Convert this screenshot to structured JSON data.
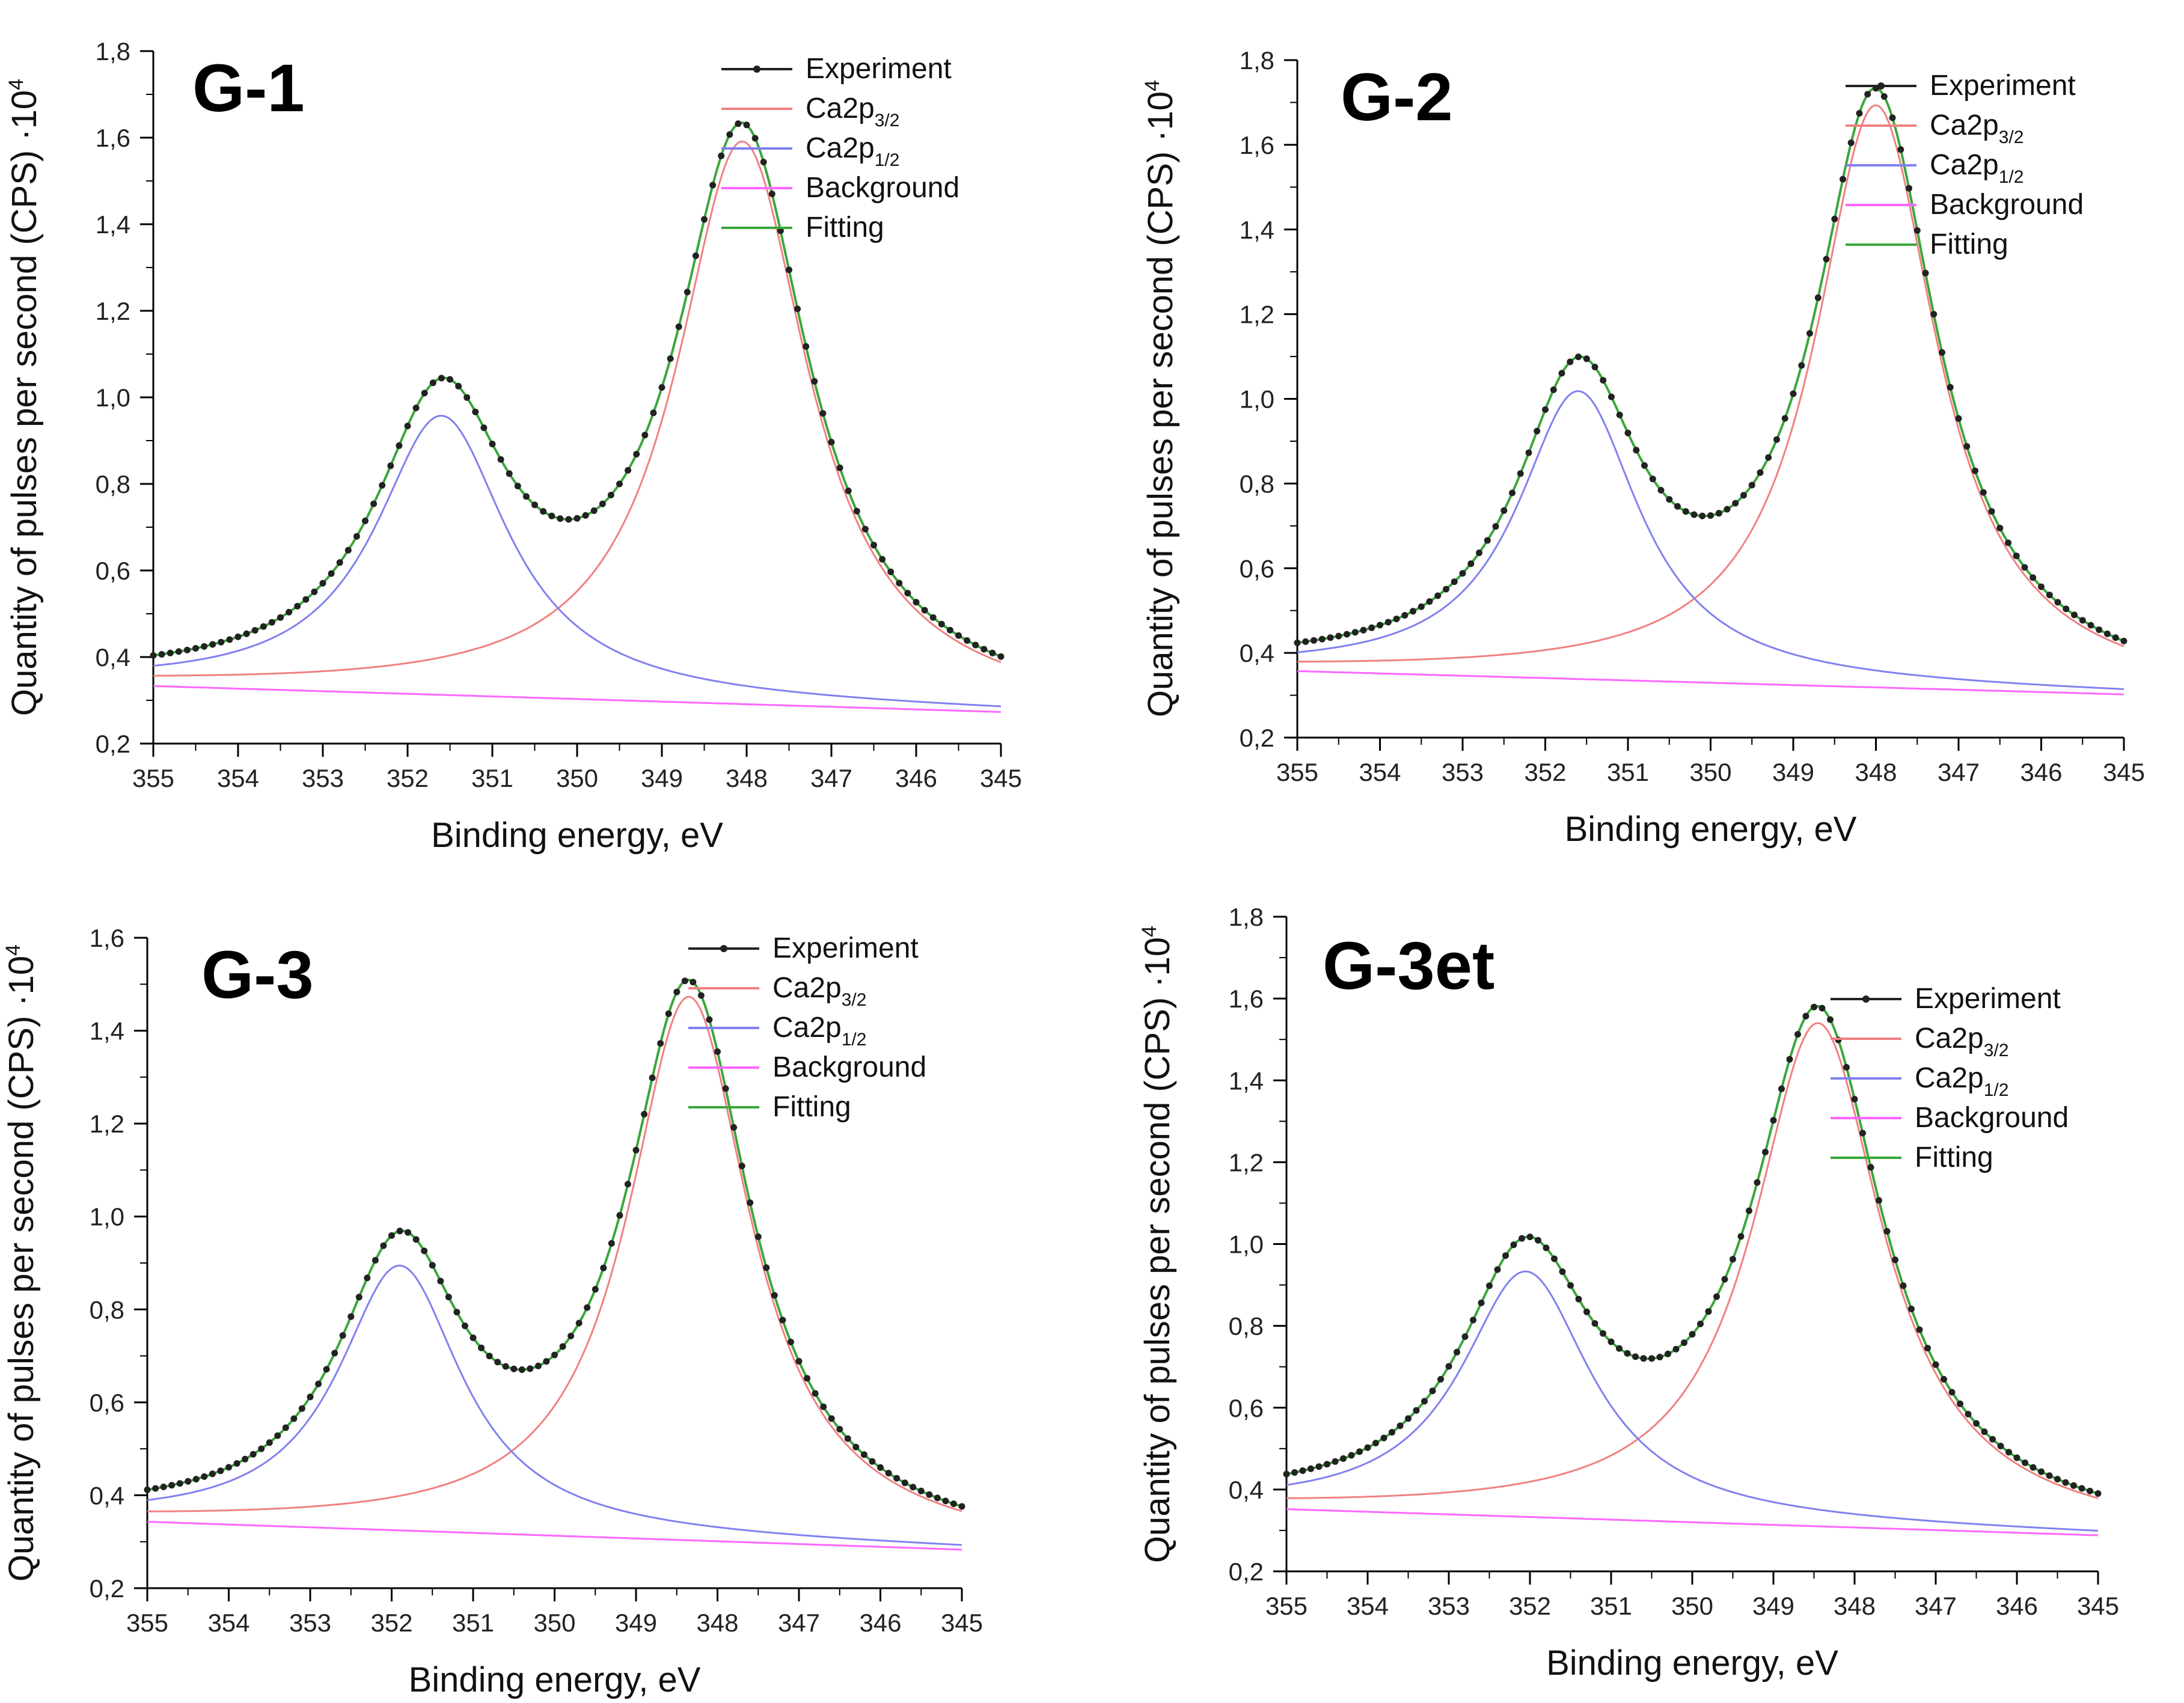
{
  "figure": {
    "background": "#ffffff"
  },
  "chart_data": [
    {
      "type": "line",
      "title": "G-1",
      "xlabel": "Binding energy, eV",
      "ylabel": "Quantity of pulses per second  (CPS) ·10",
      "ylabel_exponent": "4",
      "xlim": [
        355,
        345
      ],
      "ylim": [
        0.2,
        1.8
      ],
      "xticks": [
        355,
        354,
        353,
        352,
        351,
        350,
        349,
        348,
        347,
        346,
        345
      ],
      "yticks": [
        "0,2",
        "0,4",
        "0,6",
        "0,8",
        "1,0",
        "1,2",
        "1,4",
        "1,6",
        "1,8"
      ],
      "grid": false,
      "legend_position": "top-right",
      "legend": [
        {
          "name": "Experiment",
          "color": "#222222",
          "marker": true
        },
        {
          "name": "Ca2p",
          "sub": "3/2",
          "color": "#f08080"
        },
        {
          "name": "Ca2p",
          "sub": "1/2",
          "color": "#8080f0"
        },
        {
          "name": "Background",
          "color": "#ff66ff"
        },
        {
          "name": "Fitting",
          "color": "#3aa63a"
        }
      ],
      "peaks": [
        {
          "name": "Ca2p3/2",
          "center": 348.05,
          "height": 1.3,
          "fwhm": 1.9
        },
        {
          "name": "Ca2p1/2",
          "center": 351.6,
          "height": 0.645,
          "fwhm": 1.9
        }
      ],
      "background": {
        "x": [
          355,
          345
        ],
        "y": [
          0.333,
          0.273
        ]
      }
    },
    {
      "type": "line",
      "title": "G-2",
      "xlabel": "Binding energy, eV",
      "ylabel": "Quantity of pulses per second  (CPS) ·10",
      "ylabel_exponent": "4",
      "xlim": [
        355,
        345
      ],
      "ylim": [
        0.2,
        1.8
      ],
      "xticks": [
        355,
        354,
        353,
        352,
        351,
        350,
        349,
        348,
        347,
        346,
        345
      ],
      "yticks": [
        "0,2",
        "0,4",
        "0,6",
        "0,8",
        "1,0",
        "1,2",
        "1,4",
        "1,6",
        "1,8"
      ],
      "grid": false,
      "legend_position": "top-right",
      "legend": [
        {
          "name": "Experiment",
          "color": "#222222",
          "marker": true
        },
        {
          "name": "Ca2p",
          "sub": "3/2",
          "color": "#f08080"
        },
        {
          "name": "Ca2p",
          "sub": "1/2",
          "color": "#8080f0"
        },
        {
          "name": "Background",
          "color": "#ff66ff"
        },
        {
          "name": "Fitting",
          "color": "#3aa63a"
        }
      ],
      "peaks": [
        {
          "name": "Ca2p3/2",
          "center": 348.0,
          "height": 1.375,
          "fwhm": 1.8
        },
        {
          "name": "Ca2p1/2",
          "center": 351.6,
          "height": 0.68,
          "fwhm": 1.8
        }
      ],
      "background": {
        "x": [
          355,
          345
        ],
        "y": [
          0.357,
          0.302
        ]
      }
    },
    {
      "type": "line",
      "title": "G-3",
      "xlabel": "Binding energy, eV",
      "ylabel": "Quantity of pulses per second  (CPS) ·10",
      "ylabel_exponent": "4",
      "xlim": [
        355,
        345
      ],
      "ylim": [
        0.2,
        1.6
      ],
      "xticks": [
        355,
        354,
        353,
        352,
        351,
        350,
        349,
        348,
        347,
        346,
        345
      ],
      "yticks": [
        "0,2",
        "0,4",
        "0,6",
        "0,8",
        "1,0",
        "1,2",
        "1,4",
        "1,6"
      ],
      "grid": false,
      "legend_position": "top-right",
      "legend": [
        {
          "name": "Experiment",
          "color": "#222222",
          "marker": true
        },
        {
          "name": "Ca2p",
          "sub": "3/2",
          "color": "#f08080"
        },
        {
          "name": "Ca2p",
          "sub": "1/2",
          "color": "#8080f0"
        },
        {
          "name": "Background",
          "color": "#ff66ff"
        },
        {
          "name": "Fitting",
          "color": "#3aa63a"
        }
      ],
      "peaks": [
        {
          "name": "Ca2p3/2",
          "center": 348.35,
          "height": 1.17,
          "fwhm": 1.85
        },
        {
          "name": "Ca2p1/2",
          "center": 351.9,
          "height": 0.57,
          "fwhm": 1.85
        }
      ],
      "background": {
        "x": [
          355,
          345
        ],
        "y": [
          0.343,
          0.283
        ]
      }
    },
    {
      "type": "line",
      "title": "G-3et",
      "xlabel": "Binding energy, eV",
      "ylabel": "Quantity of pulses per second  (CPS) ·10",
      "ylabel_exponent": "4",
      "xlim": [
        355,
        345
      ],
      "ylim": [
        0.2,
        1.8
      ],
      "xticks": [
        355,
        354,
        353,
        352,
        351,
        350,
        349,
        348,
        347,
        346,
        345
      ],
      "yticks": [
        "0,2",
        "0,4",
        "0,6",
        "0,8",
        "1,0",
        "1,2",
        "1,4",
        "1,6",
        "1,8"
      ],
      "grid": false,
      "legend_position": "top-right",
      "legend": [
        {
          "name": "Experiment",
          "color": "#222222",
          "marker": true
        },
        {
          "name": "Ca2p",
          "sub": "3/2",
          "color": "#f08080"
        },
        {
          "name": "Ca2p",
          "sub": "1/2",
          "color": "#8080f0"
        },
        {
          "name": "Background",
          "color": "#ff66ff"
        },
        {
          "name": "Fitting",
          "color": "#3aa63a"
        }
      ],
      "peaks": [
        {
          "name": "Ca2p3/2",
          "center": 348.45,
          "height": 1.23,
          "fwhm": 1.95
        },
        {
          "name": "Ca2p1/2",
          "center": 352.05,
          "height": 0.6,
          "fwhm": 1.95
        }
      ],
      "background": {
        "x": [
          355,
          345
        ],
        "y": [
          0.352,
          0.288
        ]
      }
    }
  ]
}
